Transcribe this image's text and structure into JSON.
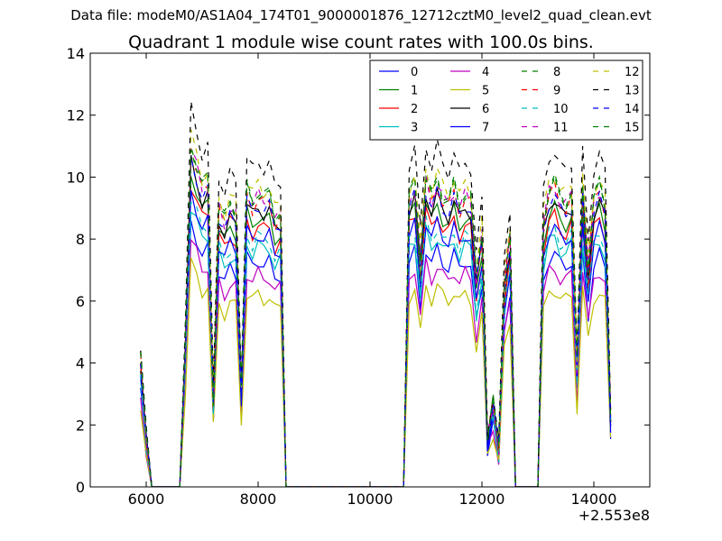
{
  "suptitle": "Data file: modeM0/AS1A04_174T01_9000001876_12712cztM0_level2_quad_clean.evt",
  "chart_data": {
    "type": "line",
    "title": "Quadrant 1 module wise count rates with 100.0s bins.",
    "xlabel": "",
    "ylabel": "",
    "xlim": [
      5000,
      15000
    ],
    "ylim": [
      0,
      14
    ],
    "x_offset_label": "+2.553e8",
    "x_ticks": [
      6000,
      8000,
      10000,
      12000,
      14000
    ],
    "x_tick_labels": [
      "6000",
      "8000",
      "10000",
      "12000",
      "14000"
    ],
    "y_ticks": [
      0,
      2,
      4,
      6,
      8,
      10,
      12,
      14
    ],
    "y_tick_labels": [
      "0",
      "2",
      "4",
      "6",
      "8",
      "10",
      "12",
      "14"
    ],
    "grid": false,
    "legend_position": "top-right",
    "x": [
      5900,
      6000,
      6100,
      6200,
      6300,
      6400,
      6500,
      6600,
      6700,
      6800,
      6900,
      7000,
      7100,
      7200,
      7300,
      7400,
      7500,
      7600,
      7700,
      7800,
      7900,
      8000,
      8100,
      8200,
      8300,
      8400,
      8500,
      8600,
      8700,
      8800,
      8900,
      9000,
      9100,
      9200,
      9300,
      9400,
      9500,
      9600,
      9700,
      9800,
      9900,
      10000,
      10100,
      10200,
      10300,
      10400,
      10500,
      10600,
      10700,
      10800,
      10900,
      11000,
      11100,
      11200,
      11300,
      11400,
      11500,
      11600,
      11700,
      11800,
      11900,
      12000,
      12100,
      12200,
      12300,
      12400,
      12500,
      12600,
      12700,
      12800,
      12900,
      13000,
      13100,
      13200,
      13300,
      13400,
      13500,
      13600,
      13700,
      13800,
      13900,
      14000,
      14100,
      14200,
      14300
    ],
    "base_profile": [
      4.1,
      1.6,
      0,
      0,
      0,
      0,
      0,
      0,
      4.7,
      10.9,
      10.3,
      9.6,
      9.8,
      2.8,
      9.0,
      8.5,
      9.0,
      8.8,
      3.2,
      9.5,
      9.1,
      9.4,
      9.2,
      9.3,
      8.6,
      8.8,
      0,
      0,
      0,
      0,
      0,
      0,
      0,
      0,
      0,
      0,
      0,
      0,
      0,
      0,
      0,
      0,
      0,
      0,
      0,
      0,
      0,
      0,
      9.3,
      9.7,
      7.4,
      9.9,
      9.2,
      9.8,
      9.3,
      9.1,
      9.6,
      9.0,
      9.4,
      9.2,
      6.7,
      8.2,
      1.6,
      2.7,
      1.2,
      6.6,
      8.1,
      0,
      0,
      0,
      0,
      0,
      8.5,
      9.5,
      9.7,
      9.2,
      9.1,
      9.4,
      3.9,
      9.6,
      7.1,
      9.2,
      9.6,
      9.0,
      2.3
    ],
    "series": [
      {
        "name": "0",
        "scale": 0.78,
        "color": "#0000ff",
        "dash": "solid"
      },
      {
        "name": "1",
        "scale": 0.93,
        "color": "#008000",
        "dash": "solid"
      },
      {
        "name": "2",
        "scale": 0.9,
        "color": "#ff0000",
        "dash": "solid"
      },
      {
        "name": "3",
        "scale": 0.83,
        "color": "#00bfbf",
        "dash": "solid"
      },
      {
        "name": "4",
        "scale": 0.73,
        "color": "#bf00bf",
        "dash": "solid"
      },
      {
        "name": "5",
        "scale": 0.66,
        "color": "#bfbf00",
        "dash": "solid"
      },
      {
        "name": "6",
        "scale": 0.96,
        "color": "#000000",
        "dash": "solid"
      },
      {
        "name": "7",
        "scale": 0.87,
        "color": "#0000ff",
        "dash": "solid"
      },
      {
        "name": "8",
        "scale": 1.02,
        "color": "#008000",
        "dash": "dashed"
      },
      {
        "name": "9",
        "scale": 0.99,
        "color": "#ff0000",
        "dash": "dashed"
      },
      {
        "name": "10",
        "scale": 0.86,
        "color": "#00bfbf",
        "dash": "dashed"
      },
      {
        "name": "11",
        "scale": 1.0,
        "color": "#bf00bf",
        "dash": "dashed"
      },
      {
        "name": "12",
        "scale": 1.04,
        "color": "#bfbf00",
        "dash": "dashed"
      },
      {
        "name": "13",
        "scale": 1.12,
        "color": "#000000",
        "dash": "dashed"
      },
      {
        "name": "14",
        "scale": 0.97,
        "color": "#0000ff",
        "dash": "dashed"
      },
      {
        "name": "15",
        "scale": 1.01,
        "color": "#008000",
        "dash": "dashed"
      }
    ]
  }
}
